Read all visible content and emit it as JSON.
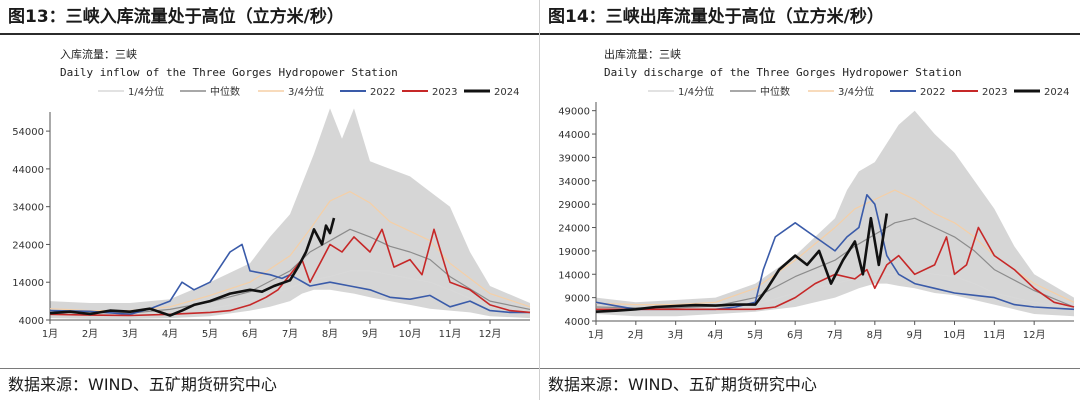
{
  "panels": [
    {
      "figure_title": "图13：三峡入库流量处于高位（立方米/秒）",
      "source": "数据来源：WIND、五矿期货研究中心"
    },
    {
      "figure_title": "图14：三峡出库流量处于高位（立方米/秒）",
      "source": "数据来源：WIND、五矿期货研究中心"
    }
  ],
  "chart_data": [
    {
      "type": "line",
      "title": "入库流量：三峡",
      "subtitle": "Daily inflow of the Three Gorges Hydropower Station",
      "xlabel": "",
      "ylabel": "",
      "x_ticks": [
        "1月",
        "2月",
        "3月",
        "4月",
        "5月",
        "6月",
        "7月",
        "8月",
        "9月",
        "10月",
        "11月",
        "12月"
      ],
      "y_ticks": [
        4000,
        14000,
        24000,
        34000,
        44000,
        54000
      ],
      "ylim": [
        4000,
        58000
      ],
      "legend_position": "top",
      "grid": false,
      "colors": {
        "q1": "#d8d8d8",
        "median": "#8c8c8c",
        "q3": "#f5cfa6",
        "y2022": "#3a5ba9",
        "y2023": "#c62828",
        "y2024": "#111111",
        "band": "#d4d4d4"
      },
      "legend": [
        "1/4分位",
        "中位数",
        "3/4分位",
        "2022",
        "2023",
        "2024"
      ],
      "series": [
        {
          "name": "1/4分位",
          "x": [
            0,
            1,
            2,
            3,
            4,
            5,
            6,
            6.5,
            7,
            7.5,
            8,
            8.5,
            9,
            9.5,
            10,
            11,
            12
          ],
          "values": [
            6000,
            5500,
            5000,
            6000,
            7000,
            9000,
            12500,
            14500,
            15500,
            17000,
            17000,
            16000,
            15000,
            14000,
            12000,
            7500,
            6000
          ]
        },
        {
          "name": "中位数",
          "x": [
            0,
            1,
            2,
            3,
            4,
            5,
            6,
            6.5,
            7,
            7.5,
            8,
            8.5,
            9,
            9.5,
            10,
            11,
            12
          ],
          "values": [
            6500,
            6000,
            5800,
            6800,
            8800,
            11500,
            17000,
            22000,
            25000,
            28000,
            26000,
            23500,
            22000,
            20000,
            15500,
            9000,
            6800
          ]
        },
        {
          "name": "3/4分位",
          "x": [
            0,
            1,
            2,
            3,
            4,
            5,
            6,
            6.5,
            7,
            7.5,
            8,
            8.5,
            9,
            9.5,
            10,
            11,
            12
          ],
          "values": [
            7000,
            6500,
            6500,
            7500,
            10500,
            14000,
            21000,
            28000,
            35500,
            38000,
            35000,
            30000,
            27500,
            25000,
            19000,
            11000,
            7500
          ]
        },
        {
          "name": "2022",
          "x": [
            0,
            1,
            2,
            2.5,
            3,
            3.3,
            3.6,
            4,
            4.5,
            4.8,
            5,
            5.5,
            5.8,
            6,
            6.5,
            7,
            7.5,
            8,
            8.5,
            9,
            9.5,
            10,
            10.5,
            11,
            11.5,
            12
          ],
          "values": [
            6500,
            6300,
            5500,
            7000,
            9000,
            14000,
            12000,
            14000,
            22000,
            24000,
            17000,
            16000,
            15000,
            16000,
            13000,
            14000,
            13000,
            12000,
            10000,
            9500,
            10500,
            7500,
            9000,
            6500,
            6000,
            6000
          ]
        },
        {
          "name": "2023",
          "x": [
            0,
            1,
            2,
            3,
            4,
            4.5,
            5,
            5.4,
            5.7,
            6,
            6.3,
            6.5,
            6.8,
            7,
            7.3,
            7.6,
            8,
            8.3,
            8.6,
            9,
            9.3,
            9.6,
            10,
            10.5,
            11,
            11.5,
            12
          ],
          "values": [
            5500,
            5300,
            5200,
            5500,
            6000,
            6500,
            8000,
            10000,
            12000,
            16000,
            20000,
            14000,
            20000,
            24000,
            22000,
            26000,
            22000,
            28000,
            18000,
            20000,
            16000,
            28000,
            14000,
            12000,
            8000,
            6500,
            6000
          ]
        },
        {
          "name": "2024",
          "x": [
            0,
            0.5,
            1,
            1.5,
            2,
            2.5,
            3,
            3.3,
            3.6,
            4,
            4.5,
            5,
            5.3,
            5.6,
            6,
            6.2,
            6.4,
            6.5,
            6.6,
            6.8,
            6.9,
            7,
            7.1
          ],
          "values": [
            5800,
            6200,
            5600,
            6500,
            6200,
            7000,
            5200,
            6500,
            8000,
            9000,
            11000,
            12000,
            11500,
            13000,
            14500,
            18000,
            22000,
            25000,
            28000,
            24000,
            29000,
            27000,
            31000
          ]
        }
      ],
      "band": {
        "x": [
          0,
          1,
          2,
          3,
          4,
          5,
          5.5,
          6,
          6.3,
          6.6,
          7,
          7.3,
          7.6,
          8,
          8.5,
          9,
          9.5,
          10,
          10.5,
          11,
          12
        ],
        "upper": [
          9000,
          8500,
          8500,
          9500,
          14000,
          19000,
          26000,
          32000,
          40000,
          48000,
          60000,
          52000,
          60000,
          46000,
          44000,
          42000,
          38000,
          34000,
          22000,
          13000,
          8500
        ],
        "lower": [
          4500,
          4300,
          4300,
          4500,
          5000,
          6500,
          7500,
          9000,
          11000,
          12000,
          12000,
          11500,
          11000,
          10000,
          9000,
          8000,
          7000,
          6500,
          6000,
          5000,
          4500
        ]
      }
    },
    {
      "type": "line",
      "title": "出库流量：三峡",
      "subtitle": "Daily discharge of the Three Gorges Hydropower Station",
      "xlabel": "",
      "ylabel": "",
      "x_ticks": [
        "1月",
        "2月",
        "3月",
        "4月",
        "5月",
        "6月",
        "7月",
        "8月",
        "9月",
        "10月",
        "11月",
        "12月"
      ],
      "y_ticks": [
        4000,
        9000,
        14000,
        19000,
        24000,
        29000,
        34000,
        39000,
        44000,
        49000
      ],
      "ylim": [
        4000,
        50000
      ],
      "legend_position": "top",
      "grid": false,
      "colors": {
        "q1": "#d8d8d8",
        "median": "#8c8c8c",
        "q3": "#f5cfa6",
        "y2022": "#3a5ba9",
        "y2023": "#c62828",
        "y2024": "#111111",
        "band": "#d4d4d4"
      },
      "legend": [
        "1/4分位",
        "中位数",
        "3/4分位",
        "2022",
        "2023",
        "2024"
      ],
      "series": [
        {
          "name": "1/4分位",
          "x": [
            0,
            1,
            2,
            3,
            4,
            5,
            6,
            6.5,
            7,
            7.5,
            8,
            8.5,
            9,
            9.5,
            10,
            11,
            12
          ],
          "values": [
            6500,
            6300,
            6300,
            6500,
            7500,
            10000,
            12000,
            13000,
            14000,
            14000,
            14500,
            14000,
            13500,
            12000,
            10000,
            8000,
            6500
          ]
        },
        {
          "name": "中位数",
          "x": [
            0,
            1,
            2,
            3,
            4,
            5,
            6,
            6.5,
            7,
            7.5,
            8,
            8.5,
            9,
            9.5,
            10,
            11,
            12
          ],
          "values": [
            7000,
            6800,
            6800,
            7200,
            9000,
            13500,
            17000,
            20000,
            22500,
            25000,
            26000,
            24000,
            22000,
            19000,
            15000,
            10500,
            7000
          ]
        },
        {
          "name": "3/4分位",
          "x": [
            0,
            1,
            2,
            3,
            4,
            5,
            6,
            6.5,
            7,
            7.5,
            8,
            8.5,
            9,
            9.5,
            10,
            11,
            12
          ],
          "values": [
            7800,
            7500,
            7500,
            8000,
            11000,
            17000,
            24000,
            28000,
            30000,
            32000,
            30000,
            27000,
            25000,
            22000,
            18000,
            12000,
            8000
          ]
        },
        {
          "name": "2022",
          "x": [
            0,
            1,
            2,
            3,
            3.5,
            4,
            4.2,
            4.5,
            5,
            5.5,
            6,
            6.3,
            6.6,
            6.8,
            7,
            7.3,
            7.6,
            8,
            8.5,
            9,
            9.5,
            10,
            10.5,
            11,
            12
          ],
          "values": [
            8000,
            6500,
            6500,
            6500,
            7000,
            8000,
            15000,
            22000,
            25000,
            22000,
            19000,
            22000,
            24000,
            31000,
            29000,
            18000,
            14000,
            12000,
            11000,
            10000,
            9500,
            9000,
            7500,
            7000,
            6500
          ]
        },
        {
          "name": "2023",
          "x": [
            0,
            1,
            2,
            3,
            4,
            4.5,
            5,
            5.5,
            6,
            6.5,
            6.8,
            7,
            7.3,
            7.6,
            8,
            8.5,
            8.8,
            9,
            9.3,
            9.6,
            10,
            10.5,
            11,
            11.5,
            12
          ],
          "values": [
            6500,
            6500,
            6500,
            6500,
            6500,
            7000,
            9000,
            12000,
            14000,
            13000,
            15000,
            11000,
            16000,
            18000,
            14000,
            16000,
            22000,
            14000,
            16000,
            24000,
            18000,
            15000,
            11000,
            8000,
            7000
          ]
        },
        {
          "name": "2024",
          "x": [
            0,
            0.5,
            1,
            1.5,
            2,
            2.5,
            3,
            3.5,
            4,
            4.3,
            4.6,
            5,
            5.3,
            5.6,
            5.9,
            6.2,
            6.5,
            6.7,
            6.9,
            7.1,
            7.3
          ],
          "values": [
            6000,
            6200,
            6500,
            7000,
            7200,
            7400,
            7300,
            7500,
            7500,
            11000,
            15000,
            18000,
            16000,
            19000,
            12000,
            17000,
            21000,
            14000,
            26000,
            16000,
            27000
          ]
        }
      ],
      "band": {
        "x": [
          0,
          1,
          2,
          3,
          4,
          5,
          5.5,
          6,
          6.3,
          6.6,
          7,
          7.3,
          7.6,
          8,
          8.5,
          9,
          9.5,
          10,
          10.5,
          11,
          12
        ],
        "upper": [
          9000,
          8000,
          8500,
          9000,
          12000,
          18000,
          22000,
          26000,
          32000,
          36000,
          38000,
          42000,
          46000,
          49000,
          44000,
          40000,
          34000,
          28000,
          20000,
          14000,
          9000
        ],
        "lower": [
          5500,
          5000,
          5000,
          5500,
          6000,
          7000,
          8000,
          9000,
          10000,
          11000,
          12000,
          12000,
          11500,
          11000,
          10000,
          9500,
          8500,
          7500,
          6500,
          5500,
          5000
        ]
      }
    }
  ]
}
